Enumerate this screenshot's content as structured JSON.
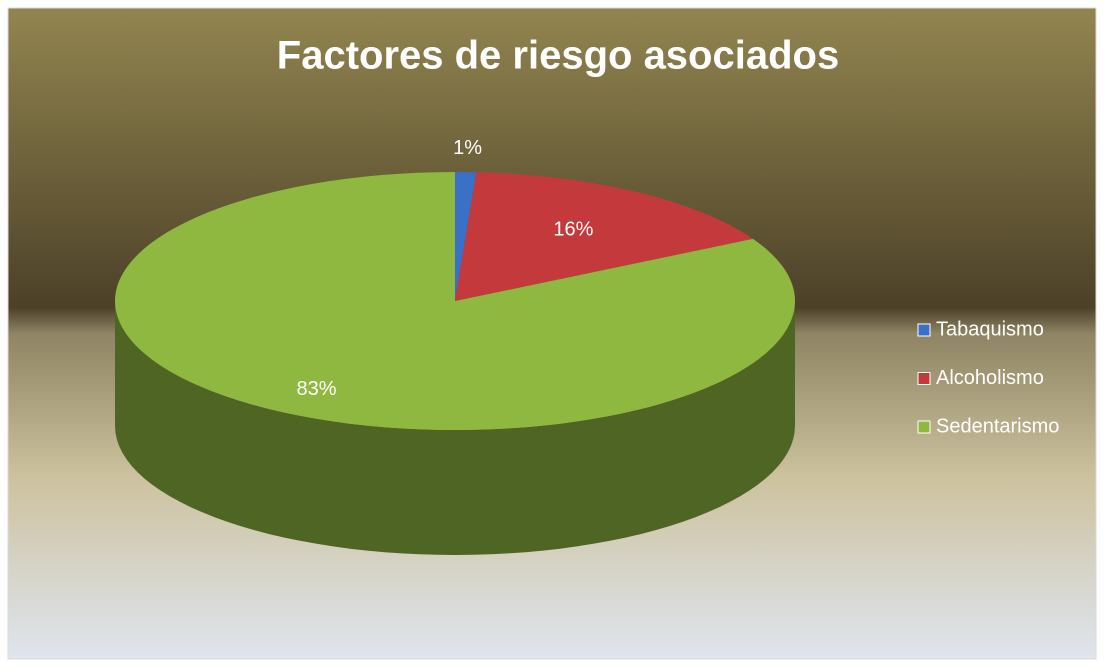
{
  "chart_data": {
    "type": "pie",
    "title": "Factores de riesgo asociados",
    "categories": [
      "Tabaquismo",
      "Alcoholismo",
      "Sedentarismo"
    ],
    "values": [
      1,
      16,
      83
    ],
    "value_labels": [
      "1%",
      "16%",
      "83%"
    ],
    "colors": [
      "#3a70c6",
      "#c43a3c",
      "#8fb840"
    ],
    "legend": "right"
  }
}
